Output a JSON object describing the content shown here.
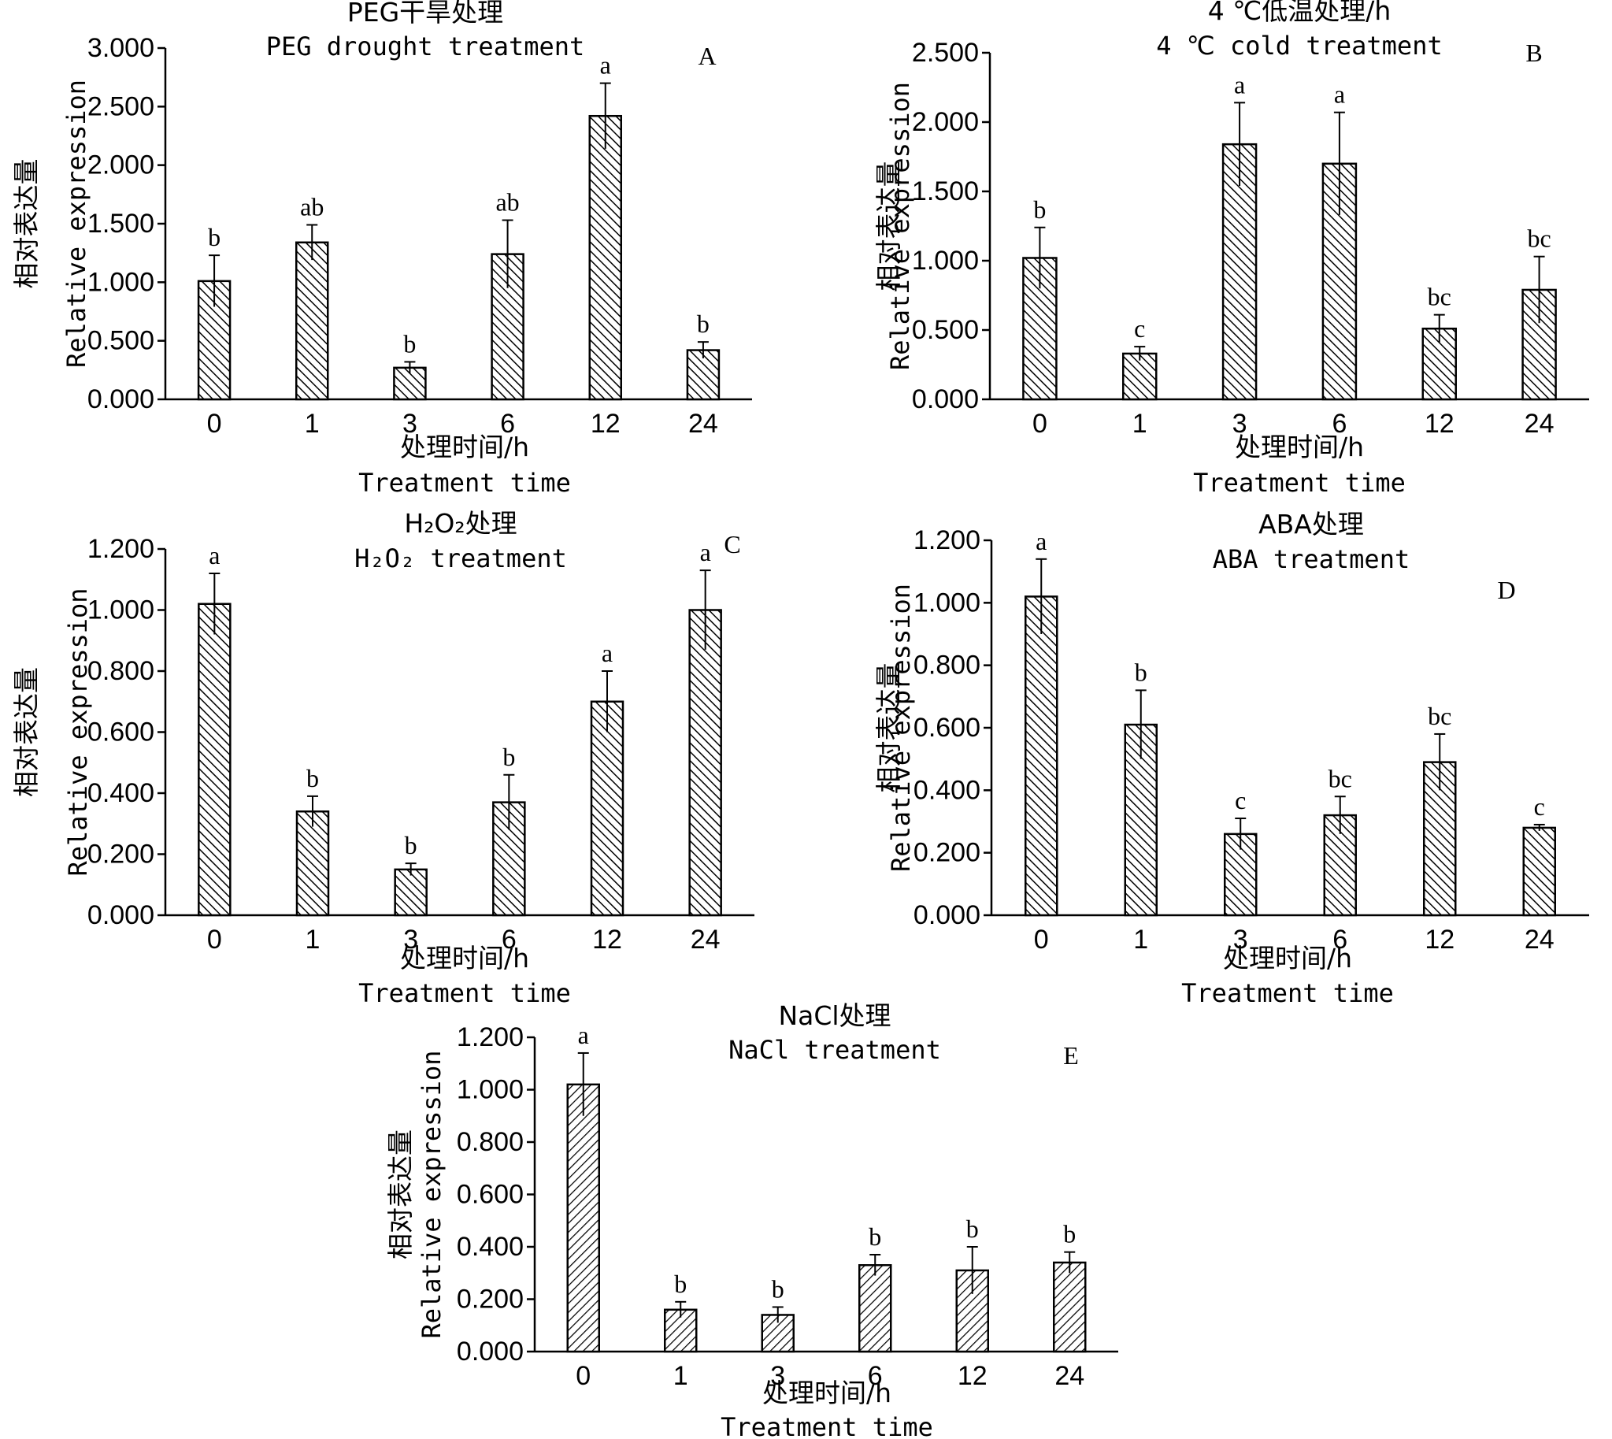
{
  "figure": {
    "x_title_cn": "处理时间/h",
    "x_title_en": "Treatment time",
    "y_title_cn": "相对表达量",
    "y_title_en": "Relative expression"
  },
  "chart_data": [
    {
      "type": "bar",
      "panel": "A",
      "title_cn": "PEG干旱处理",
      "title_en": "PEG drought treatment",
      "xlabel": "处理时间/h Treatment time",
      "ylabel": "相对表达量 Relative expression",
      "categories": [
        "0",
        "1",
        "3",
        "6",
        "12",
        "24"
      ],
      "values": [
        1.01,
        1.34,
        0.27,
        1.24,
        2.42,
        0.42
      ],
      "errors": [
        0.22,
        0.15,
        0.05,
        0.29,
        0.28,
        0.07
      ],
      "significance": [
        "b",
        "ab",
        "b",
        "ab",
        "a",
        "b"
      ],
      "yticks": [
        "0.000",
        "0.500",
        "1.000",
        "1.500",
        "2.000",
        "2.500",
        "3.000"
      ],
      "ylim": [
        0,
        3.0
      ],
      "fill": "back-diagonal hatch"
    },
    {
      "type": "bar",
      "panel": "B",
      "title_cn": "4 ℃低温处理/h",
      "title_en": "4 ℃ cold treatment",
      "xlabel": "处理时间/h Treatment time",
      "ylabel": "相对表达量 Relative expression",
      "categories": [
        "0",
        "1",
        "3",
        "6",
        "12",
        "24"
      ],
      "values": [
        1.02,
        0.33,
        1.84,
        1.7,
        0.51,
        0.79
      ],
      "errors": [
        0.22,
        0.05,
        0.3,
        0.37,
        0.1,
        0.24
      ],
      "significance": [
        "b",
        "c",
        "a",
        "a",
        "bc",
        "bc"
      ],
      "yticks": [
        "0.000",
        "0.500",
        "1.000",
        "1.500",
        "2.000",
        "2.500"
      ],
      "ylim": [
        0,
        2.5
      ],
      "fill": "back-diagonal hatch"
    },
    {
      "type": "bar",
      "panel": "C",
      "title_cn": "H₂O₂处理",
      "title_en": "H₂O₂ treatment",
      "xlabel": "处理时间/h Treatment time",
      "ylabel": "相对表达量 Relative expression",
      "categories": [
        "0",
        "1",
        "3",
        "6",
        "12",
        "24"
      ],
      "values": [
        1.02,
        0.34,
        0.15,
        0.37,
        0.7,
        1.0
      ],
      "errors": [
        0.1,
        0.05,
        0.02,
        0.09,
        0.1,
        0.13
      ],
      "significance": [
        "a",
        "b",
        "b",
        "b",
        "a",
        "a"
      ],
      "yticks": [
        "0.000",
        "0.200",
        "0.400",
        "0.600",
        "0.800",
        "1.000",
        "1.200"
      ],
      "ylim": [
        0,
        1.2
      ],
      "fill": "back-diagonal hatch"
    },
    {
      "type": "bar",
      "panel": "D",
      "title_cn": "ABA处理",
      "title_en": "ABA treatment",
      "xlabel": "处理时间/h Treatment time",
      "ylabel": "相对表达量 Relative expression",
      "categories": [
        "0",
        "1",
        "3",
        "6",
        "12",
        "24"
      ],
      "values": [
        1.02,
        0.61,
        0.26,
        0.32,
        0.49,
        0.28
      ],
      "errors": [
        0.12,
        0.11,
        0.05,
        0.06,
        0.09,
        0.01
      ],
      "significance": [
        "a",
        "b",
        "c",
        "bc",
        "bc",
        "c"
      ],
      "yticks": [
        "0.000",
        "0.200",
        "0.400",
        "0.600",
        "0.800",
        "1.000",
        "1.200"
      ],
      "ylim": [
        0,
        1.2
      ],
      "fill": "back-diagonal hatch"
    },
    {
      "type": "bar",
      "panel": "E",
      "title_cn": "NaCl处理",
      "title_en": "NaCl treatment",
      "xlabel": "处理时间/h Treatment time",
      "ylabel": "相对表达量 Relative expression",
      "categories": [
        "0",
        "1",
        "3",
        "6",
        "12",
        "24"
      ],
      "values": [
        1.02,
        0.16,
        0.14,
        0.33,
        0.31,
        0.34
      ],
      "errors": [
        0.12,
        0.03,
        0.03,
        0.04,
        0.09,
        0.04
      ],
      "significance": [
        "a",
        "b",
        "b",
        "b",
        "b",
        "b"
      ],
      "yticks": [
        "0.000",
        "0.200",
        "0.400",
        "0.600",
        "0.800",
        "1.000",
        "1.200"
      ],
      "ylim": [
        0,
        1.2
      ],
      "fill": "forward-diagonal hatch"
    }
  ]
}
